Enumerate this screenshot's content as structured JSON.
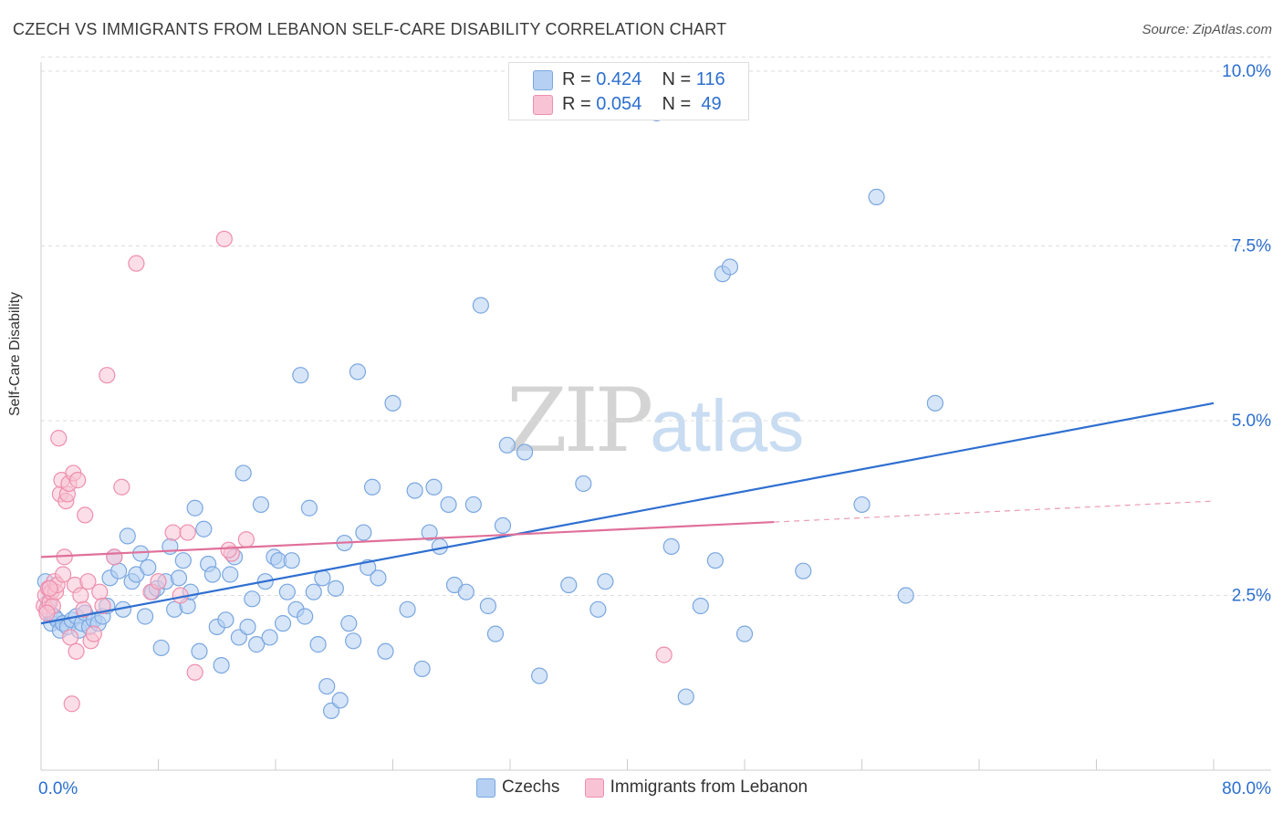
{
  "header": {
    "title": "CZECH VS IMMIGRANTS FROM LEBANON SELF-CARE DISABILITY CORRELATION CHART",
    "source": "Source: ZipAtlas.com"
  },
  "watermark": {
    "zip": "ZIP",
    "atlas": "atlas"
  },
  "legend_top": [
    {
      "r_label": "R =",
      "r_value": "0.424",
      "n_label": "N =",
      "n_value": "116"
    },
    {
      "r_label": "R =",
      "r_value": "0.054",
      "n_label": "N =",
      "n_value": "49"
    }
  ],
  "colors": {
    "czechs_fill": "#b5d0f2",
    "czechs_stroke": "#7aa7e0",
    "czechs_line": "#2f6fd0",
    "lebanon_fill": "#f8c3d4",
    "lebanon_stroke": "#ee8fae",
    "lebanon_line": "#e0709a",
    "grid": "#dddddd",
    "tick_label": "#2c6fcf"
  },
  "chart_data": {
    "type": "scatter",
    "title": "CZECH VS IMMIGRANTS FROM LEBANON SELF-CARE DISABILITY CORRELATION CHART",
    "xlabel": "",
    "ylabel": "Self-Care Disability",
    "xlim": [
      0,
      80
    ],
    "ylim": [
      0,
      10.2
    ],
    "x_tick_labels": [
      "0.0%",
      "80.0%"
    ],
    "y_ticks": [
      2.5,
      5.0,
      7.5,
      10.0
    ],
    "y_tick_labels": [
      "2.5%",
      "5.0%",
      "7.5%",
      "10.0%"
    ],
    "grid": "horizontal dashed",
    "legend_position": "top-center and bottom",
    "series": [
      {
        "name": "Czechs",
        "r": 0.424,
        "n": 116,
        "trend": {
          "x": [
            0,
            80
          ],
          "y": [
            2.1,
            5.25
          ],
          "dashed_from": null
        },
        "points": [
          [
            0.3,
            2.7
          ],
          [
            0.5,
            2.4
          ],
          [
            0.6,
            2.25
          ],
          [
            0.7,
            2.1
          ],
          [
            0.9,
            2.2
          ],
          [
            1.1,
            2.15
          ],
          [
            1.3,
            2.0
          ],
          [
            1.5,
            2.1
          ],
          [
            1.8,
            2.05
          ],
          [
            2.1,
            2.15
          ],
          [
            2.4,
            2.2
          ],
          [
            2.6,
            2.0
          ],
          [
            2.8,
            2.1
          ],
          [
            3.0,
            2.25
          ],
          [
            3.3,
            2.05
          ],
          [
            3.6,
            2.15
          ],
          [
            3.9,
            2.1
          ],
          [
            4.2,
            2.2
          ],
          [
            4.5,
            2.35
          ],
          [
            4.7,
            2.75
          ],
          [
            5.0,
            3.05
          ],
          [
            5.3,
            2.85
          ],
          [
            5.6,
            2.3
          ],
          [
            5.9,
            3.35
          ],
          [
            6.2,
            2.7
          ],
          [
            6.5,
            2.8
          ],
          [
            6.8,
            3.1
          ],
          [
            7.1,
            2.2
          ],
          [
            7.3,
            2.9
          ],
          [
            7.6,
            2.55
          ],
          [
            7.9,
            2.6
          ],
          [
            8.2,
            1.75
          ],
          [
            8.5,
            2.7
          ],
          [
            8.8,
            3.2
          ],
          [
            9.1,
            2.3
          ],
          [
            9.4,
            2.75
          ],
          [
            9.7,
            3.0
          ],
          [
            10.0,
            2.35
          ],
          [
            10.2,
            2.55
          ],
          [
            10.5,
            3.75
          ],
          [
            10.8,
            1.7
          ],
          [
            11.1,
            3.45
          ],
          [
            11.4,
            2.95
          ],
          [
            11.7,
            2.8
          ],
          [
            12.0,
            2.05
          ],
          [
            12.3,
            1.5
          ],
          [
            12.6,
            2.15
          ],
          [
            12.9,
            2.8
          ],
          [
            13.2,
            3.05
          ],
          [
            13.5,
            1.9
          ],
          [
            13.8,
            4.25
          ],
          [
            14.1,
            2.05
          ],
          [
            14.4,
            2.45
          ],
          [
            14.7,
            1.8
          ],
          [
            15.0,
            3.8
          ],
          [
            15.3,
            2.7
          ],
          [
            15.6,
            1.9
          ],
          [
            15.9,
            3.05
          ],
          [
            16.2,
            3.0
          ],
          [
            16.5,
            2.1
          ],
          [
            16.8,
            2.55
          ],
          [
            17.1,
            3.0
          ],
          [
            17.4,
            2.3
          ],
          [
            17.7,
            5.65
          ],
          [
            18.0,
            2.2
          ],
          [
            18.3,
            3.75
          ],
          [
            18.6,
            2.55
          ],
          [
            18.9,
            1.8
          ],
          [
            19.2,
            2.75
          ],
          [
            19.5,
            1.2
          ],
          [
            19.8,
            0.85
          ],
          [
            20.1,
            2.6
          ],
          [
            20.4,
            1.0
          ],
          [
            20.7,
            3.25
          ],
          [
            21.0,
            2.1
          ],
          [
            21.3,
            1.85
          ],
          [
            21.6,
            5.7
          ],
          [
            22.0,
            3.4
          ],
          [
            22.3,
            2.9
          ],
          [
            22.6,
            4.05
          ],
          [
            23.0,
            2.75
          ],
          [
            23.5,
            1.7
          ],
          [
            24.0,
            5.25
          ],
          [
            25.0,
            2.3
          ],
          [
            25.5,
            4.0
          ],
          [
            26.0,
            1.45
          ],
          [
            26.5,
            3.4
          ],
          [
            26.8,
            4.05
          ],
          [
            27.2,
            3.2
          ],
          [
            27.8,
            3.8
          ],
          [
            28.2,
            2.65
          ],
          [
            29.0,
            2.55
          ],
          [
            29.5,
            3.8
          ],
          [
            30.0,
            6.65
          ],
          [
            30.5,
            2.35
          ],
          [
            31.0,
            1.95
          ],
          [
            31.5,
            3.5
          ],
          [
            31.8,
            4.65
          ],
          [
            33.0,
            4.55
          ],
          [
            34.0,
            1.35
          ],
          [
            36.0,
            2.65
          ],
          [
            37.0,
            4.1
          ],
          [
            38.0,
            2.3
          ],
          [
            38.5,
            2.7
          ],
          [
            42.0,
            9.4
          ],
          [
            43.0,
            3.2
          ],
          [
            44.0,
            1.05
          ],
          [
            45.0,
            2.35
          ],
          [
            46.0,
            3.0
          ],
          [
            46.5,
            7.1
          ],
          [
            47.0,
            7.2
          ],
          [
            48.0,
            1.95
          ],
          [
            52.0,
            2.85
          ],
          [
            56.0,
            3.8
          ],
          [
            57.0,
            8.2
          ],
          [
            59.0,
            2.5
          ],
          [
            61.0,
            5.25
          ]
        ]
      },
      {
        "name": "Immigrants from Lebanon",
        "r": 0.054,
        "n": 49,
        "trend": {
          "x": [
            0,
            80
          ],
          "y": [
            3.05,
            3.85
          ],
          "dashed_from": 50
        },
        "points": [
          [
            0.2,
            2.35
          ],
          [
            0.3,
            2.5
          ],
          [
            0.4,
            2.3
          ],
          [
            0.5,
            2.6
          ],
          [
            0.6,
            2.4
          ],
          [
            0.7,
            2.55
          ],
          [
            0.8,
            2.35
          ],
          [
            0.9,
            2.7
          ],
          [
            1.0,
            2.55
          ],
          [
            1.1,
            2.65
          ],
          [
            1.2,
            4.75
          ],
          [
            1.3,
            3.95
          ],
          [
            1.4,
            4.15
          ],
          [
            1.5,
            2.8
          ],
          [
            1.6,
            3.05
          ],
          [
            1.7,
            3.85
          ],
          [
            1.8,
            3.95
          ],
          [
            1.9,
            4.1
          ],
          [
            2.0,
            1.9
          ],
          [
            2.1,
            0.95
          ],
          [
            2.2,
            4.25
          ],
          [
            2.3,
            2.65
          ],
          [
            2.4,
            1.7
          ],
          [
            2.5,
            4.15
          ],
          [
            2.7,
            2.5
          ],
          [
            3.0,
            3.65
          ],
          [
            3.2,
            2.7
          ],
          [
            3.4,
            1.85
          ],
          [
            3.6,
            1.95
          ],
          [
            4.0,
            2.55
          ],
          [
            4.2,
            2.35
          ],
          [
            4.5,
            5.65
          ],
          [
            5.0,
            3.05
          ],
          [
            5.5,
            4.05
          ],
          [
            6.5,
            7.25
          ],
          [
            9.0,
            3.4
          ],
          [
            9.5,
            2.5
          ],
          [
            10.0,
            3.4
          ],
          [
            10.5,
            1.4
          ],
          [
            12.5,
            7.6
          ],
          [
            13.0,
            3.1
          ],
          [
            14.0,
            3.3
          ],
          [
            12.8,
            3.15
          ],
          [
            7.5,
            2.55
          ],
          [
            8.0,
            2.7
          ],
          [
            2.9,
            2.3
          ],
          [
            0.4,
            2.25
          ],
          [
            0.6,
            2.6
          ],
          [
            42.5,
            1.65
          ]
        ]
      }
    ]
  }
}
